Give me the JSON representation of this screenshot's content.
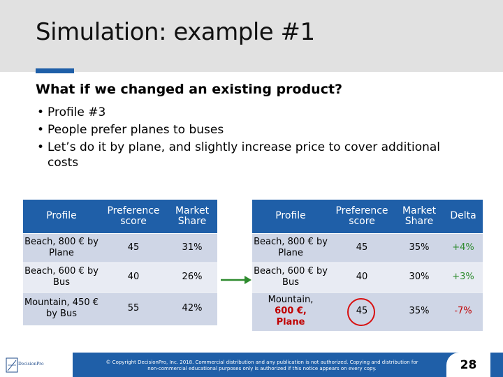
{
  "slide": {
    "title": "Simulation: example #1",
    "subtitle": "What if we changed an existing product?",
    "bullets": [
      "Profile #3",
      "People prefer planes to buses",
      "Let’s do it by plane, and slightly increase price to cover additional costs"
    ]
  },
  "table_before": {
    "headers": [
      "Profile",
      "Preference score",
      "Market Share"
    ],
    "rows": [
      {
        "profile": "Beach, 800 € by Plane",
        "score": "45",
        "share": "31%"
      },
      {
        "profile": "Beach, 600 € by Bus",
        "score": "40",
        "share": "26%"
      },
      {
        "profile": "Mountain, 450 € by Bus",
        "score": "55",
        "share": "42%"
      }
    ]
  },
  "table_after": {
    "headers": [
      "Profile",
      "Preference score",
      "Market Share",
      "Delta"
    ],
    "rows": [
      {
        "profile": "Beach, 800 € by Plane",
        "score": "45",
        "share": "35%",
        "delta": "+4%"
      },
      {
        "profile": "Beach, 600 € by Bus",
        "score": "40",
        "share": "30%",
        "delta": "+3%"
      },
      {
        "profile_line1": "Mountain,",
        "profile_changed": "600 €, Plane",
        "score": "45",
        "share": "35%",
        "delta": "-7%"
      }
    ]
  },
  "colors": {
    "header_blue": "#1f5fa8",
    "highlight_red": "#c00000",
    "arrow_green": "#2e8b2e"
  },
  "footer": {
    "logo_text": "DecisionPro",
    "copyright": "© Copyright DecisionPro, Inc. 2018. Commercial distribution and any publication is not authorized. Copying and distribution for non-commercial educational purposes only is authorized if this notice appears on every copy.",
    "page_number": "28"
  }
}
